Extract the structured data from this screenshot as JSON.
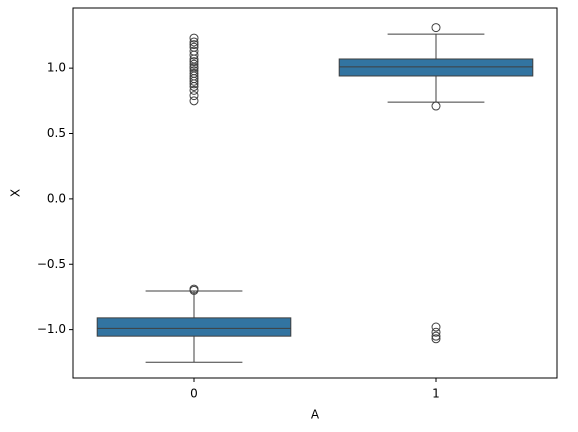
{
  "chart_data": {
    "type": "box",
    "xlabel": "A",
    "ylabel": "X",
    "categories": [
      "0",
      "1"
    ],
    "color": "#3274a1",
    "line_color": "#3f3f3f",
    "boxes": [
      {
        "whislo": -1.25,
        "q1": -1.05,
        "med": -0.99,
        "q3": -0.91,
        "whishi": -0.705,
        "fliers": [
          -0.69,
          -0.7,
          1.23,
          1.2,
          1.18,
          1.16,
          1.13,
          1.1,
          1.07,
          1.05,
          1.03,
          1.01,
          1.0,
          0.98,
          0.96,
          0.94,
          0.92,
          0.9,
          0.88,
          0.86,
          0.83,
          0.79,
          0.75
        ]
      },
      {
        "whislo": 0.74,
        "q1": 0.94,
        "med": 1.01,
        "q3": 1.07,
        "whishi": 1.26,
        "fliers": [
          1.31,
          0.71,
          -0.98,
          -1.02,
          -1.05,
          -1.07
        ]
      }
    ],
    "ylim": [
      -1.37,
      1.46
    ],
    "yticks": [
      {
        "value": -1,
        "label": "−1.0"
      },
      {
        "value": -0.5,
        "label": "−0.5"
      },
      {
        "value": 0,
        "label": "0.0"
      },
      {
        "value": 0.5,
        "label": "0.5"
      },
      {
        "value": 1,
        "label": "1.0"
      }
    ]
  }
}
